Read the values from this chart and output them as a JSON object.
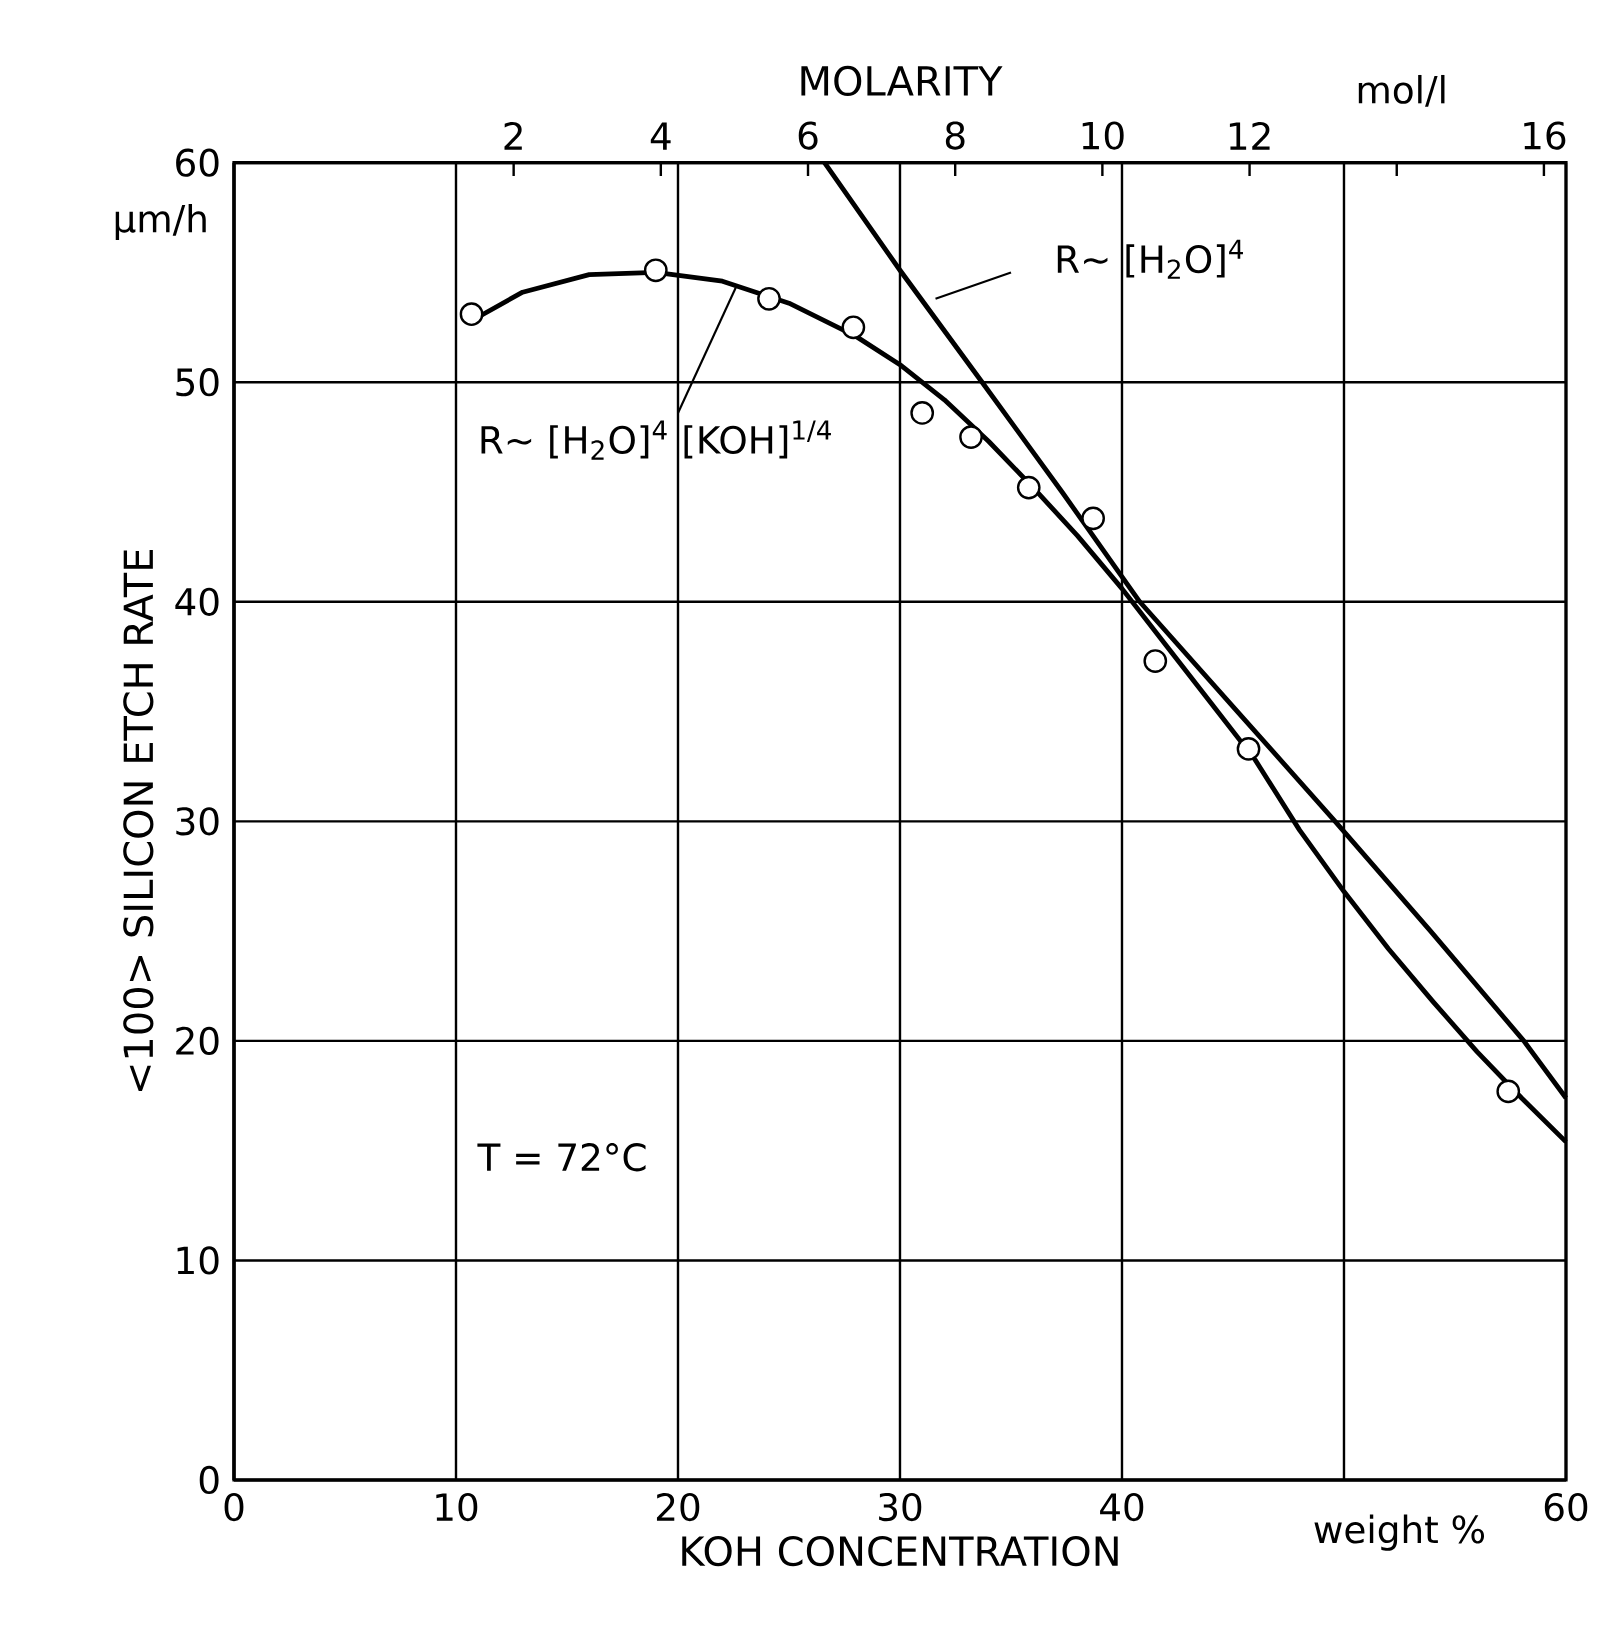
{
  "chart_data": {
    "type": "line",
    "xlabel": "KOH CONCENTRATION",
    "ylabel": "<100> SILICON ETCH RATE",
    "x2label": "MOLARITY",
    "xlim": [
      0,
      60
    ],
    "ylim": [
      0,
      60
    ],
    "xticks": [
      0,
      10,
      20,
      30,
      40,
      {
        "value": 50,
        "label": null
      },
      60
    ],
    "yticks": [
      0,
      10,
      20,
      30,
      40,
      50,
      60
    ],
    "x2lim": [
      -1.8,
      16.3
    ],
    "x2ticks": [
      2,
      4,
      6,
      8,
      10,
      12,
      {
        "value": 14,
        "label": null
      },
      16
    ],
    "grid": true,
    "series": [
      {
        "color": "#000000",
        "marker": "none",
        "line_style": "solid",
        "x": [
          26.6,
          30,
          33.7,
          37.3,
          40.8,
          45.2,
          49.6,
          53.9,
          58.1,
          60
        ],
        "values": [
          60,
          55.1,
          50,
          45,
          40,
          35,
          30,
          25,
          20,
          17.4
        ]
      },
      {
        "color": "#000000",
        "marker": "none",
        "line_style": "solid",
        "x": [
          10.7,
          13,
          16,
          19,
          22,
          25,
          28,
          30,
          32,
          34,
          36,
          38,
          40,
          42,
          44,
          46,
          48,
          50,
          52,
          54,
          56,
          58,
          60
        ],
        "values": [
          52.8,
          54.1,
          54.9,
          55.0,
          54.6,
          53.6,
          52.1,
          50.8,
          49.2,
          47.3,
          45.2,
          43.0,
          40.6,
          38.0,
          35.4,
          32.8,
          29.6,
          26.8,
          24.2,
          21.8,
          19.5,
          17.4,
          15.4
        ]
      },
      {
        "type": "scatter",
        "color": "#000000",
        "marker": "circle",
        "x": [
          10.7,
          19.0,
          24.1,
          27.9,
          31.0,
          33.2,
          35.8,
          38.7,
          41.5,
          45.7,
          57.4
        ],
        "values": [
          53.1,
          55.1,
          53.8,
          52.5,
          48.6,
          47.5,
          45.2,
          43.8,
          37.3,
          33.3,
          17.7
        ]
      }
    ],
    "annotations": [
      "µm/h",
      "mol/l",
      "weight %",
      "T = 72°C",
      {
        "text": "R~ [H$_{2}$O]$^{4}$",
        "x": 31.6,
        "y": 53.8
      },
      {
        "text": "R~ [H$_{2}$O]$^{4}$ [KOH]$^{1/4}$",
        "x": 22.6,
        "y": 54.3
      }
    ]
  }
}
